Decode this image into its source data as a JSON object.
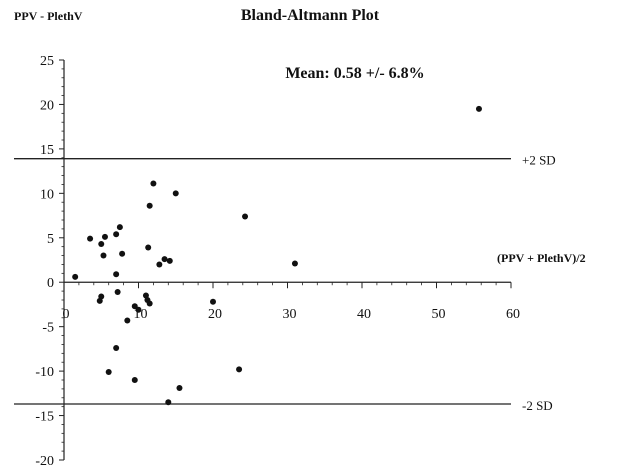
{
  "chart_data": {
    "type": "scatter",
    "title": "Bland-Altmann Plot",
    "subtitle": "Mean: 0.58 +/- 6.8%",
    "ylabel": "PPV - PlethV",
    "xlabel": "(PPV + PlethV)/2",
    "xlim": [
      0,
      60
    ],
    "ylim": [
      -20,
      25
    ],
    "x_ticks": [
      0,
      10,
      20,
      30,
      40,
      50,
      60
    ],
    "y_ticks": [
      -20,
      -15,
      -10,
      -5,
      0,
      5,
      10,
      15,
      20,
      25
    ],
    "grid": false,
    "reference_lines": [
      {
        "label": "+2 SD",
        "y": 13.9
      },
      {
        "label": "-2 SD",
        "y": -13.7
      }
    ],
    "series": [
      {
        "points": [
          [
            1.5,
            0.6
          ],
          [
            3.5,
            4.9
          ],
          [
            5,
            4.3
          ],
          [
            5.3,
            3.0
          ],
          [
            5.5,
            5.1
          ],
          [
            7,
            5.4
          ],
          [
            7.5,
            6.2
          ],
          [
            7.8,
            3.2
          ],
          [
            7,
            0.9
          ],
          [
            7.2,
            -1.1
          ],
          [
            5,
            -1.6
          ],
          [
            4.8,
            -2.1
          ],
          [
            8.5,
            -4.3
          ],
          [
            9.5,
            -2.7
          ],
          [
            10,
            -3.1
          ],
          [
            11,
            -1.5
          ],
          [
            11.2,
            -2.0
          ],
          [
            11.5,
            -2.4
          ],
          [
            11.3,
            3.9
          ],
          [
            11.5,
            8.6
          ],
          [
            12,
            11.1
          ],
          [
            12.8,
            2.0
          ],
          [
            13.5,
            2.6
          ],
          [
            14.2,
            2.4
          ],
          [
            15,
            10.0
          ],
          [
            7,
            -7.4
          ],
          [
            6,
            -10.1
          ],
          [
            9.5,
            -11.0
          ],
          [
            14,
            -13.5
          ],
          [
            15.5,
            -11.9
          ],
          [
            20,
            -2.2
          ],
          [
            23.5,
            -9.8
          ],
          [
            24.3,
            7.4
          ],
          [
            31,
            2.1
          ],
          [
            55.7,
            19.5
          ]
        ]
      }
    ]
  }
}
